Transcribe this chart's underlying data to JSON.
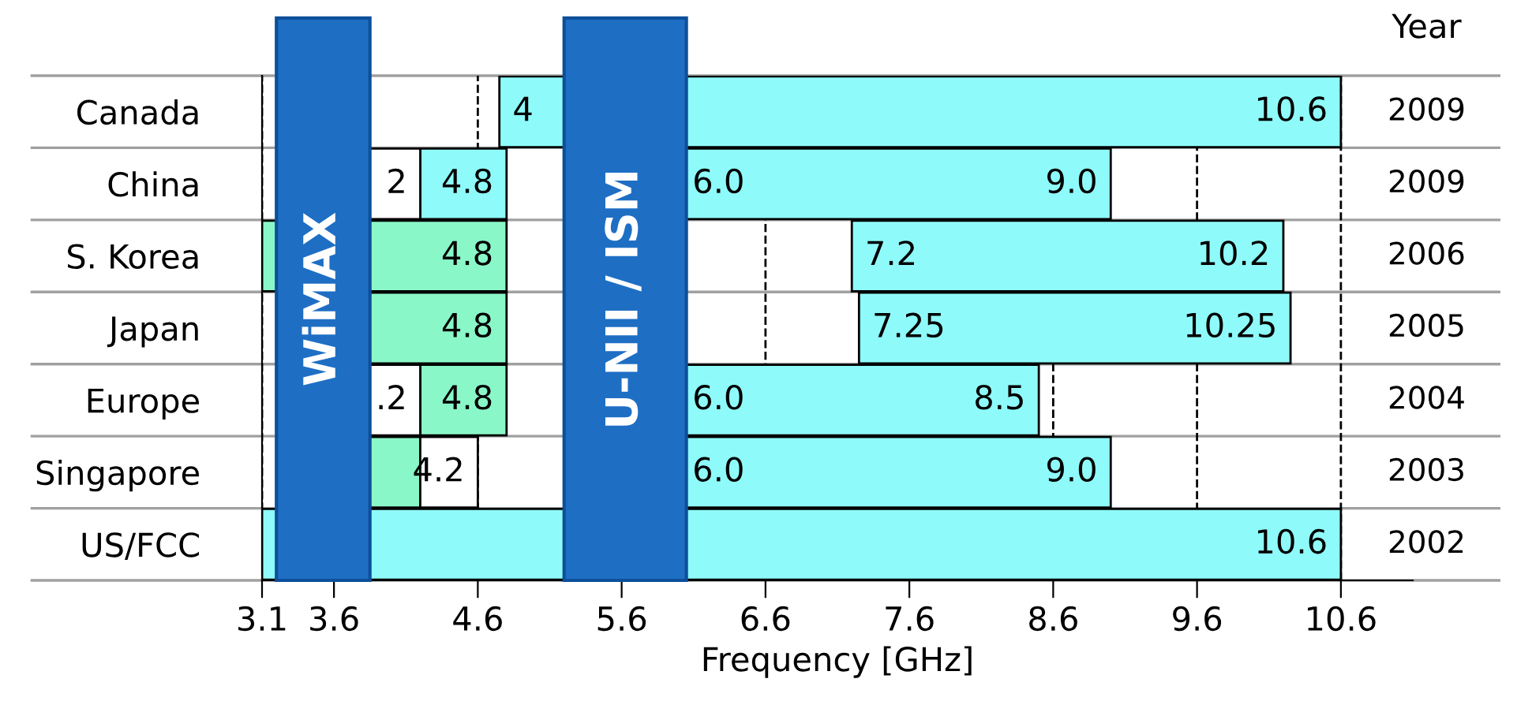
{
  "chart_data": {
    "type": "bar",
    "orientation": "horizontal",
    "xlabel": "Frequency [GHz]",
    "y2label": "Year",
    "categories": [
      "Canada",
      "China",
      "S. Korea",
      "Japan",
      "Europe",
      "Singapore",
      "US/FCC"
    ],
    "y2_categories": [
      "2009",
      "2009",
      "2006",
      "2005",
      "2004",
      "2003",
      "2002"
    ],
    "series": [
      {
        "color": "#8ffafa",
        "base": [
          4.75,
          4.2,
          null,
          null,
          null,
          null,
          3.1
        ],
        "values": [
          5.85,
          0.6,
          null,
          null,
          null,
          null,
          7.5
        ]
      },
      {
        "color": "#8af7c8",
        "base": [
          null,
          null,
          3.1,
          3.4,
          4.2,
          3.4,
          null
        ],
        "values": [
          null,
          null,
          1.7,
          1.4,
          0.6,
          0.8,
          null
        ]
      },
      {
        "color": "#ffffff",
        "base": [
          null,
          3.4,
          null,
          null,
          3.4,
          4.2,
          null
        ],
        "values": [
          null,
          0.8,
          null,
          null,
          0.8,
          0.4,
          null
        ]
      },
      {
        "color": "#8ffafa",
        "base": [
          null,
          6.0,
          7.2,
          7.25,
          6.0,
          6.0,
          null
        ],
        "values": [
          null,
          3.0,
          3.0,
          3.0,
          2.5,
          3.0,
          null
        ]
      }
    ],
    "annotations": [
      {
        "text": "4",
        "x": 4.75,
        "y": "Canada"
      },
      {
        "text": "10.6",
        "x": 10.6,
        "y": "Canada"
      },
      {
        "text": "2",
        "x": 4.2,
        "y": "China"
      },
      {
        "text": "4.8",
        "x": 4.8,
        "y": "China"
      },
      {
        "text": "6.0",
        "x": 6.0,
        "y": "China"
      },
      {
        "text": "9.0",
        "x": 9.0,
        "y": "China"
      },
      {
        "text": "4.8",
        "x": 4.8,
        "y": "S. Korea"
      },
      {
        "text": "7.2",
        "x": 7.2,
        "y": "S. Korea"
      },
      {
        "text": "10.2",
        "x": 10.2,
        "y": "S. Korea"
      },
      {
        "text": "4.8",
        "x": 4.8,
        "y": "Japan"
      },
      {
        "text": "7.25",
        "x": 7.25,
        "y": "Japan"
      },
      {
        "text": "10.25",
        "x": 10.25,
        "y": "Japan"
      },
      {
        "text": ".2",
        "x": 4.2,
        "y": "Europe"
      },
      {
        "text": "4.8",
        "x": 4.8,
        "y": "Europe"
      },
      {
        "text": "6.0",
        "x": 6.0,
        "y": "Europe"
      },
      {
        "text": "8.5",
        "x": 8.5,
        "y": "Europe"
      },
      {
        "text": "4.2",
        "x": 4.6,
        "y": "Singapore"
      },
      {
        "text": "6.0",
        "x": 6.0,
        "y": "Singapore"
      },
      {
        "text": "9.0",
        "x": 9.0,
        "y": "Singapore"
      },
      {
        "text": "10.6",
        "x": 10.6,
        "y": "US/FCC"
      }
    ],
    "bands": [
      {
        "axis": "x",
        "from": 3.2,
        "to": 3.85,
        "label": "WiMAX",
        "color": "#1e6fc4"
      },
      {
        "axis": "x",
        "from": 5.2,
        "to": 6.05,
        "label": "U-NII / ISM",
        "color": "#1e6fc4"
      }
    ],
    "xlim": [
      3.1,
      11.1
    ],
    "xticks": [
      3.1,
      3.6,
      4.6,
      5.6,
      6.6,
      7.6,
      8.6,
      9.6,
      10.6
    ],
    "grid": "x",
    "line_style": "dashed"
  }
}
